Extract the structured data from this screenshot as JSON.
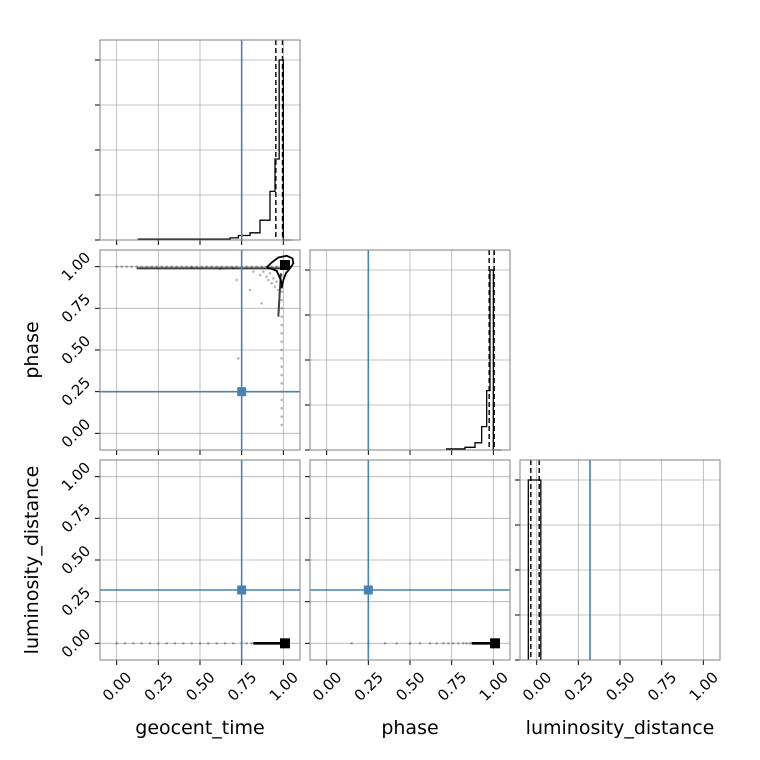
{
  "chart_data": {
    "type": "corner",
    "parameters": [
      "geocent_time",
      "phase",
      "luminosity_distance"
    ],
    "tick_labels": [
      "0.00",
      "0.25",
      "0.50",
      "0.75",
      "1.00"
    ],
    "ticks": [
      0,
      0.25,
      0.5,
      0.75,
      1.0
    ],
    "xlim": [
      -0.1,
      1.1
    ],
    "ylim": [
      -0.1,
      1.1
    ],
    "grid": true,
    "truths": {
      "geocent_time": 0.75,
      "phase": 0.25,
      "luminosity_distance": 0.32
    },
    "colors": {
      "truth": "#4682b4",
      "samples": "#000000",
      "grid": "#b0b0b0",
      "frame": "#808080"
    },
    "histograms": [
      {
        "parameter": "geocent_time",
        "edges": [
          0.13,
          0.68,
          0.73,
          0.8,
          0.86,
          0.92,
          0.95,
          0.975,
          1.0,
          1.05
        ],
        "counts": [
          0.005,
          0.012,
          0.025,
          0.04,
          0.11,
          0.27,
          0.45,
          1.0,
          0.0
        ],
        "quantiles": [
          0.955,
          0.995
        ]
      },
      {
        "parameter": "phase",
        "edges": [
          0.72,
          0.83,
          0.89,
          0.93,
          0.96,
          0.98,
          1.0,
          1.05
        ],
        "counts": [
          0.006,
          0.015,
          0.04,
          0.13,
          0.33,
          1.0,
          0.0
        ],
        "quantiles": [
          0.975,
          1.005
        ]
      },
      {
        "parameter": "luminosity_distance",
        "edges": [
          -0.05,
          0.025
        ],
        "counts": [
          1.0
        ],
        "quantiles": [
          -0.035,
          0.015
        ]
      }
    ],
    "panels": [
      {
        "x": "geocent_time",
        "y": "phase",
        "peak": [
          1.01,
          1.01
        ],
        "samples": [
          [
            0.0,
            1.0
          ],
          [
            0.03,
            1.0
          ],
          [
            0.06,
            1.0
          ],
          [
            0.09,
            1.0
          ],
          [
            0.12,
            1.0
          ],
          [
            0.15,
            1.0
          ],
          [
            0.18,
            1.0
          ],
          [
            0.21,
            1.0
          ],
          [
            0.24,
            1.0
          ],
          [
            0.27,
            1.0
          ],
          [
            0.3,
            1.0
          ],
          [
            0.33,
            1.0
          ],
          [
            0.36,
            1.0
          ],
          [
            0.39,
            1.0
          ],
          [
            0.42,
            1.0
          ],
          [
            0.45,
            1.0
          ],
          [
            0.48,
            1.0
          ],
          [
            0.51,
            1.0
          ],
          [
            0.54,
            1.0
          ],
          [
            0.57,
            1.0
          ],
          [
            0.6,
            1.0
          ],
          [
            0.63,
            1.0
          ],
          [
            0.66,
            1.0
          ],
          [
            0.69,
            1.0
          ],
          [
            0.72,
            1.0
          ],
          [
            0.75,
            1.0
          ],
          [
            0.78,
            1.0
          ],
          [
            0.81,
            1.0
          ],
          [
            0.84,
            1.0
          ],
          [
            0.87,
            1.0
          ],
          [
            0.9,
            1.0
          ],
          [
            0.93,
            1.0
          ],
          [
            0.96,
            1.0
          ],
          [
            0.45,
            0.995
          ],
          [
            0.62,
            0.985
          ],
          [
            0.7,
            0.99
          ],
          [
            0.82,
            0.97
          ],
          [
            0.86,
            0.95
          ],
          [
            0.88,
            0.97
          ],
          [
            0.9,
            0.94
          ],
          [
            0.91,
            0.92
          ],
          [
            0.92,
            0.96
          ],
          [
            0.93,
            0.9
          ],
          [
            0.94,
            0.93
          ],
          [
            0.95,
            0.88
          ],
          [
            0.96,
            0.91
          ],
          [
            0.97,
            0.86
          ],
          [
            0.72,
            0.92
          ],
          [
            0.8,
            0.86
          ],
          [
            0.87,
            0.78
          ],
          [
            0.73,
            0.45
          ],
          [
            0.99,
            0.95
          ],
          [
            0.99,
            0.9
          ],
          [
            0.99,
            0.85
          ],
          [
            0.99,
            0.8
          ],
          [
            0.99,
            0.75
          ],
          [
            0.99,
            0.7
          ],
          [
            0.99,
            0.65
          ],
          [
            0.99,
            0.6
          ],
          [
            0.99,
            0.55
          ],
          [
            0.99,
            0.5
          ],
          [
            0.99,
            0.45
          ],
          [
            0.99,
            0.4
          ],
          [
            0.99,
            0.35
          ],
          [
            0.99,
            0.3
          ],
          [
            0.99,
            0.25
          ],
          [
            0.99,
            0.2
          ],
          [
            0.99,
            0.15
          ],
          [
            0.99,
            0.1
          ],
          [
            0.99,
            0.05
          ]
        ],
        "contour": [
          [
            0.9,
            0.995
          ],
          [
            0.93,
            1.025
          ],
          [
            0.97,
            1.055
          ],
          [
            1.02,
            1.065
          ],
          [
            1.055,
            1.05
          ],
          [
            1.06,
            1.02
          ],
          [
            1.04,
            0.99
          ],
          [
            1.015,
            0.96
          ],
          [
            1.0,
            0.92
          ],
          [
            0.99,
            0.87
          ],
          [
            0.985,
            0.92
          ],
          [
            0.96,
            0.975
          ],
          [
            0.92,
            0.99
          ],
          [
            0.9,
            0.995
          ]
        ],
        "ridge_x": [
          [
            0.12,
            1.0
          ],
          [
            0.985,
            0.97
          ],
          [
            0.985,
            0.985
          ]
        ],
        "ridge_y": [
          [
            0.99,
            0.99
          ],
          [
            0.96,
            0.7
          ],
          [
            0.99,
            0.99
          ]
        ]
      },
      {
        "x": "geocent_time",
        "y": "luminosity_distance",
        "peak": [
          1.01,
          0.0
        ],
        "samples": [
          [
            0.0,
            0.0
          ],
          [
            0.05,
            0.0
          ],
          [
            0.1,
            0.0
          ],
          [
            0.15,
            0.0
          ],
          [
            0.2,
            0.0
          ],
          [
            0.25,
            0.0
          ],
          [
            0.3,
            0.0
          ],
          [
            0.35,
            0.0
          ],
          [
            0.4,
            0.0
          ],
          [
            0.45,
            0.0
          ],
          [
            0.5,
            0.0
          ],
          [
            0.55,
            0.0
          ],
          [
            0.6,
            0.0
          ],
          [
            0.65,
            0.0
          ],
          [
            0.7,
            0.0
          ],
          [
            0.75,
            0.0
          ],
          [
            0.78,
            0.0
          ],
          [
            0.81,
            0.0
          ]
        ],
        "line": [
          [
            0.82,
            0.0
          ],
          [
            1.0,
            0.0
          ]
        ]
      },
      {
        "x": "phase",
        "y": "luminosity_distance",
        "peak": [
          1.01,
          0.0
        ],
        "samples": [
          [
            0.15,
            0.0
          ],
          [
            0.25,
            0.0
          ],
          [
            0.35,
            0.0
          ],
          [
            0.42,
            0.0
          ],
          [
            0.5,
            0.0
          ],
          [
            0.56,
            0.0
          ],
          [
            0.62,
            0.0
          ],
          [
            0.66,
            0.0
          ],
          [
            0.7,
            0.0
          ],
          [
            0.73,
            0.0
          ],
          [
            0.76,
            0.0
          ],
          [
            0.79,
            0.0
          ],
          [
            0.82,
            0.0
          ],
          [
            0.84,
            0.0
          ],
          [
            0.86,
            0.0
          ]
        ],
        "line": [
          [
            0.87,
            0.0
          ],
          [
            1.0,
            0.0
          ]
        ]
      }
    ]
  }
}
